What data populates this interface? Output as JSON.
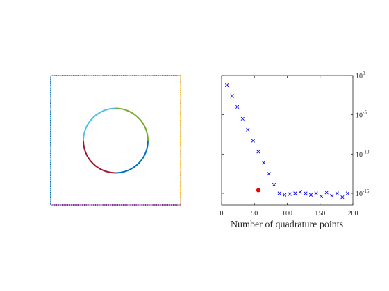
{
  "chart_data": [
    {
      "type": "diagram",
      "boundaries": [
        {
          "name": "outer-top",
          "color": "#D95319"
        },
        {
          "name": "outer-right",
          "color": "#EDB120"
        },
        {
          "name": "outer-bottom",
          "color": "#7E2F8E"
        },
        {
          "name": "outer-left",
          "color": "#0072BD"
        },
        {
          "name": "circle-top-left",
          "color": "#4DBEEE"
        },
        {
          "name": "circle-top-right",
          "color": "#77AC30"
        },
        {
          "name": "circle-bottom-right",
          "color": "#0072BD"
        },
        {
          "name": "circle-bottom-left",
          "color": "#A2142F"
        }
      ]
    },
    {
      "type": "scatter",
      "xlabel": "Number of quadrature points",
      "ylabel": "",
      "xlim": [
        0,
        200
      ],
      "ylim_log10": [
        -16.5,
        0
      ],
      "xticks": [
        0,
        50,
        100,
        150,
        200
      ],
      "yticks": [
        {
          "base": "10",
          "exp": "0",
          "log": 0
        },
        {
          "base": "10",
          "exp": "-5",
          "log": -5
        },
        {
          "base": "10",
          "exp": "-10",
          "log": -10
        },
        {
          "base": "10",
          "exp": "-15",
          "log": -15
        }
      ],
      "yaxis_location": "right",
      "yscale": "log",
      "series": [
        {
          "marker": "x",
          "color": "#0000ff",
          "points": [
            {
              "x": 8,
              "log10_y": -1.2
            },
            {
              "x": 16,
              "log10_y": -2.6
            },
            {
              "x": 24,
              "log10_y": -4.0
            },
            {
              "x": 32,
              "log10_y": -5.5
            },
            {
              "x": 40,
              "log10_y": -6.9
            },
            {
              "x": 48,
              "log10_y": -8.3
            },
            {
              "x": 56,
              "log10_y": -9.7
            },
            {
              "x": 64,
              "log10_y": -11.1
            },
            {
              "x": 72,
              "log10_y": -12.5
            },
            {
              "x": 80,
              "log10_y": -13.9
            },
            {
              "x": 88,
              "log10_y": -15.0
            },
            {
              "x": 96,
              "log10_y": -15.2
            },
            {
              "x": 104,
              "log10_y": -15.1
            },
            {
              "x": 112,
              "log10_y": -15.0
            },
            {
              "x": 120,
              "log10_y": -14.8
            },
            {
              "x": 128,
              "log10_y": -15.0
            },
            {
              "x": 136,
              "log10_y": -15.2
            },
            {
              "x": 144,
              "log10_y": -15.0
            },
            {
              "x": 152,
              "log10_y": -15.4
            },
            {
              "x": 160,
              "log10_y": -14.9
            },
            {
              "x": 168,
              "log10_y": -15.3
            },
            {
              "x": 176,
              "log10_y": -15.0
            },
            {
              "x": 184,
              "log10_y": -15.5
            },
            {
              "x": 192,
              "log10_y": -15.0
            }
          ]
        },
        {
          "marker": "dot",
          "color": "#ee0000",
          "points": [
            {
              "x": 56,
              "log10_y": -14.6
            }
          ]
        }
      ]
    }
  ]
}
